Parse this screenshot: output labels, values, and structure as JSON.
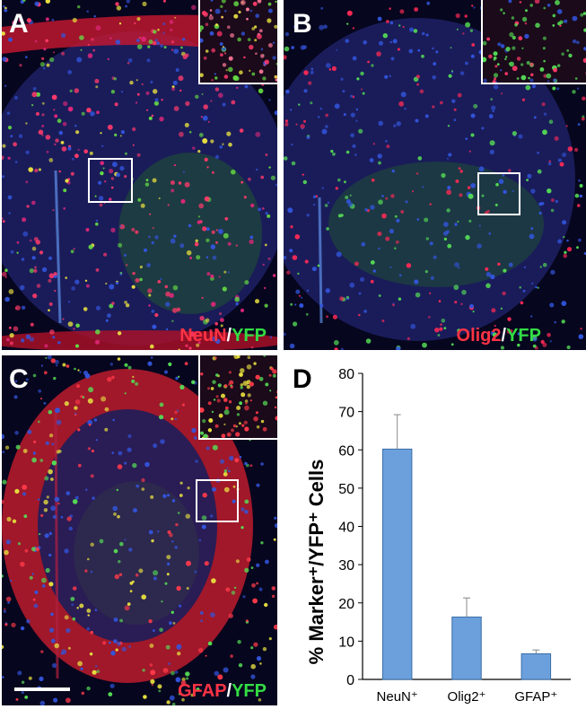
{
  "panels": {
    "a": {
      "letter": "A",
      "stain_red": "NeuN",
      "sep": "/",
      "stain_green": "YFP"
    },
    "b": {
      "letter": "B",
      "stain_red": "Olig2",
      "sep": "/",
      "stain_green": "YFP"
    },
    "c": {
      "letter": "C",
      "stain_red": "GFAP",
      "sep": "/",
      "stain_green": "YFP"
    },
    "d": {
      "letter": "D"
    }
  },
  "colors": {
    "red_stain": "#ff3344",
    "green_stain": "#33dd44",
    "separator": "#ffffff",
    "bar": "#6ca0dc",
    "bar_edge": "#3a6ea8"
  },
  "chart_data": {
    "type": "bar",
    "ylabel": "% Marker⁺/YFP⁺ Cells",
    "ylim": [
      0,
      80
    ],
    "yticks": [
      0,
      10,
      20,
      30,
      40,
      50,
      60,
      70,
      80
    ],
    "categories": [
      "NeuN⁺",
      "Olig2⁺",
      "GFAP⁺"
    ],
    "values": [
      60.2,
      16.3,
      6.7
    ],
    "errors": [
      9.0,
      5.0,
      1.0
    ],
    "grid": false
  }
}
